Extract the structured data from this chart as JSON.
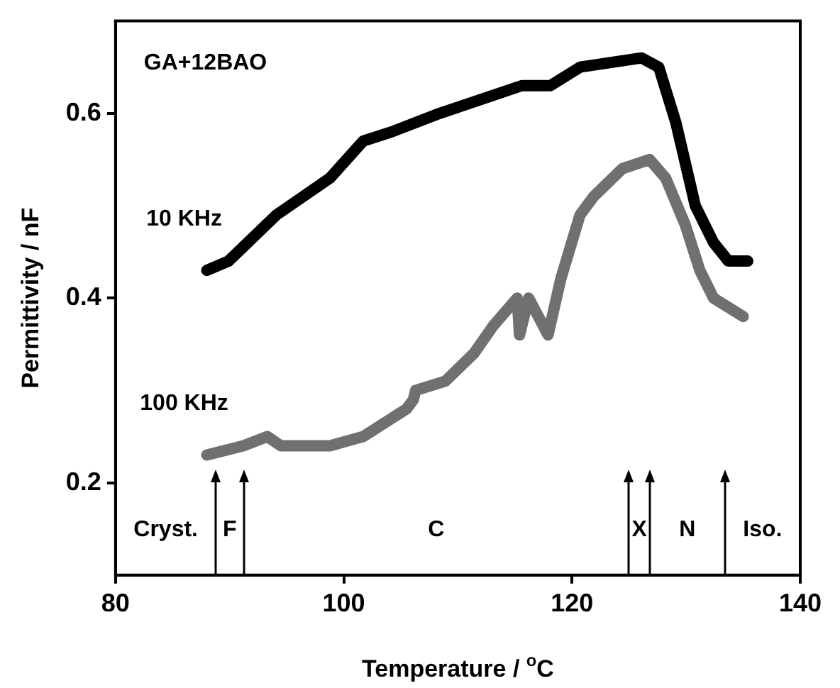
{
  "chart_data": {
    "type": "line",
    "xlabel": "Temperature / $^{o}$C",
    "ylabel": "Permittivity / nF",
    "xlim": [
      80,
      140
    ],
    "xticks": [
      80,
      100,
      120,
      140
    ],
    "ylim": [
      0.1,
      0.7
    ],
    "yticks": [
      0.2,
      0.4,
      0.6
    ],
    "grid": false,
    "marker": "none",
    "line_style": "solid",
    "series": [
      {
        "name": "10 KHz",
        "color": "#000000",
        "x": [
          88.0,
          89.9,
          94.1,
          98.8,
          101.7,
          104.2,
          108.4,
          115.6,
          118.1,
          120.7,
          126.1,
          127.6,
          129.1,
          130.8,
          132.4,
          133.7,
          135.4
        ],
        "values": [
          0.43,
          0.44,
          0.49,
          0.53,
          0.57,
          0.58,
          0.6,
          0.63,
          0.63,
          0.65,
          0.66,
          0.65,
          0.59,
          0.5,
          0.46,
          0.44,
          0.44
        ]
      },
      {
        "name": "100 KHz",
        "color": "#707070",
        "x": [
          88.0,
          91.2,
          93.3,
          94.5,
          98.8,
          101.7,
          105.5,
          106.1,
          106.3,
          108.9,
          111.4,
          113.1,
          115.2,
          115.4,
          116.2,
          117.9,
          119.0,
          120.7,
          121.9,
          124.4,
          126.8,
          128.2,
          129.9,
          131.2,
          132.4,
          135.0
        ],
        "values": [
          0.23,
          0.24,
          0.25,
          0.24,
          0.24,
          0.25,
          0.28,
          0.29,
          0.3,
          0.31,
          0.34,
          0.37,
          0.4,
          0.36,
          0.4,
          0.36,
          0.42,
          0.49,
          0.51,
          0.54,
          0.55,
          0.53,
          0.48,
          0.43,
          0.4,
          0.38
        ]
      }
    ],
    "ref_lines": [
      {
        "axis": "x",
        "value": 88.8
      },
      {
        "axis": "x",
        "value": 91.2
      },
      {
        "axis": "x",
        "value": 125.0
      },
      {
        "axis": "x",
        "value": 126.8
      },
      {
        "axis": "x",
        "value": 133.4
      }
    ],
    "annotations": [
      "GA+12BAO",
      "Cryst.",
      "F",
      "C",
      "X",
      "N",
      "Iso."
    ]
  }
}
